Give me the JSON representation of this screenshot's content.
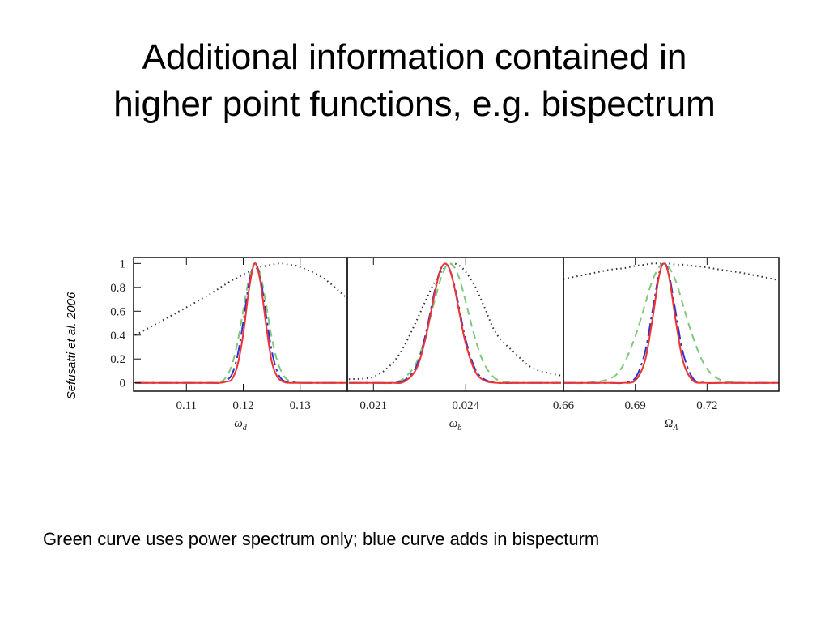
{
  "title_lines": [
    "Additional information contained in",
    "higher point functions, e.g. bispectrum"
  ],
  "citation": "Sefusatti et al. 2006",
  "caption": "Green curve uses power spectrum only; blue curve adds in bispecturm",
  "chart_data": [
    {
      "type": "line",
      "xlabel": "ω",
      "xlabel_sub": "d",
      "xlim": [
        0.1007,
        0.1383
      ],
      "ylim": [
        -0.07,
        1.05
      ],
      "xticks": [
        0.11,
        0.12,
        0.13
      ],
      "yticks": [
        0,
        0.2,
        0.4,
        0.6,
        0.8,
        1
      ],
      "x": [
        0.101,
        0.108,
        0.114,
        0.116,
        0.117,
        0.118,
        0.119,
        0.12,
        0.121,
        0.122,
        0.123,
        0.124,
        0.125,
        0.126,
        0.127,
        0.128,
        0.13,
        0.134,
        0.138
      ],
      "series": [
        {
          "color": "#333333",
          "style": "dotted",
          "values": [
            0.4,
            0.58,
            0.74,
            0.8,
            0.83,
            0.86,
            0.88,
            0.91,
            0.93,
            0.95,
            0.97,
            0.98,
            0.99,
            1.0,
            1.0,
            0.99,
            0.97,
            0.88,
            0.72
          ]
        },
        {
          "color": "#7dc87d",
          "style": "dashed",
          "values": [
            0,
            0,
            0,
            0.01,
            0.05,
            0.15,
            0.34,
            0.61,
            0.87,
            1.0,
            0.91,
            0.66,
            0.38,
            0.18,
            0.07,
            0.02,
            0,
            0,
            0
          ]
        },
        {
          "color": "#3333cc",
          "style": "longdash",
          "values": [
            0,
            0,
            0,
            0,
            0.02,
            0.07,
            0.23,
            0.51,
            0.83,
            1.0,
            0.88,
            0.57,
            0.27,
            0.09,
            0.02,
            0.01,
            0,
            0,
            0
          ]
        },
        {
          "color": "#ee3333",
          "style": "solid",
          "values": [
            0,
            0,
            0,
            0,
            0.01,
            0.03,
            0.15,
            0.41,
            0.78,
            1.0,
            0.85,
            0.49,
            0.18,
            0.05,
            0.01,
            0,
            0,
            0,
            0
          ]
        }
      ]
    },
    {
      "type": "line",
      "xlabel": "ω",
      "xlabel_sub": "b",
      "xlim": [
        0.02015,
        0.02718
      ],
      "ylim": [
        -0.07,
        1.05
      ],
      "xticks": [
        0.021,
        0.024
      ],
      "x": [
        0.0202,
        0.021,
        0.0216,
        0.022,
        0.0224,
        0.0227,
        0.023,
        0.0232,
        0.0234,
        0.0236,
        0.0238,
        0.024,
        0.0243,
        0.0246,
        0.025,
        0.0256,
        0.0262,
        0.0271
      ],
      "series": [
        {
          "color": "#333333",
          "style": "dotted",
          "values": [
            0.03,
            0.05,
            0.16,
            0.31,
            0.52,
            0.69,
            0.85,
            0.93,
            0.98,
            1.0,
            0.98,
            0.93,
            0.81,
            0.64,
            0.41,
            0.25,
            0.12,
            0.06
          ]
        },
        {
          "color": "#7dc87d",
          "style": "dashed",
          "values": [
            0,
            0,
            0,
            0.04,
            0.17,
            0.4,
            0.7,
            0.88,
            0.99,
            0.98,
            0.87,
            0.68,
            0.38,
            0.16,
            0.03,
            0,
            0,
            0
          ]
        },
        {
          "color": "#3333cc",
          "style": "longdash",
          "values": [
            0,
            0,
            0,
            0.02,
            0.14,
            0.41,
            0.78,
            0.96,
            0.99,
            0.85,
            0.61,
            0.36,
            0.12,
            0.03,
            0,
            0,
            0,
            0
          ]
        },
        {
          "color": "#ee3333",
          "style": "solid",
          "values": [
            0,
            0,
            0,
            0.01,
            0.12,
            0.38,
            0.76,
            0.96,
            0.99,
            0.84,
            0.58,
            0.33,
            0.1,
            0.02,
            0,
            0,
            0,
            0
          ]
        }
      ]
    },
    {
      "type": "line",
      "xlabel": "Ω",
      "xlabel_sub": "Λ",
      "xlim": [
        0.66,
        0.75
      ],
      "ylim": [
        -0.07,
        1.05
      ],
      "xticks": [
        0.66,
        0.69,
        0.72
      ],
      "x": [
        0.66,
        0.67,
        0.68,
        0.685,
        0.69,
        0.694,
        0.697,
        0.7,
        0.702,
        0.704,
        0.707,
        0.71,
        0.714,
        0.719,
        0.725,
        0.735,
        0.75
      ],
      "series": [
        {
          "color": "#333333",
          "style": "dotted",
          "values": [
            0.87,
            0.91,
            0.95,
            0.96,
            0.98,
            0.99,
            1.0,
            1.0,
            1.0,
            1.0,
            0.99,
            0.99,
            0.98,
            0.97,
            0.95,
            0.92,
            0.86
          ]
        },
        {
          "color": "#7dc87d",
          "style": "dashed",
          "values": [
            0,
            0,
            0.04,
            0.15,
            0.39,
            0.65,
            0.85,
            0.97,
            1.0,
            0.97,
            0.85,
            0.65,
            0.39,
            0.15,
            0.03,
            0,
            0
          ]
        },
        {
          "color": "#3333cc",
          "style": "longdash",
          "values": [
            0,
            0,
            0,
            0,
            0.04,
            0.25,
            0.58,
            0.92,
            1.0,
            0.92,
            0.58,
            0.25,
            0.04,
            0,
            0,
            0,
            0
          ]
        },
        {
          "color": "#ee3333",
          "style": "solid",
          "values": [
            0,
            0,
            0,
            0,
            0.02,
            0.18,
            0.51,
            0.9,
            1.0,
            0.9,
            0.51,
            0.18,
            0.02,
            0,
            0,
            0,
            0
          ]
        }
      ]
    }
  ]
}
